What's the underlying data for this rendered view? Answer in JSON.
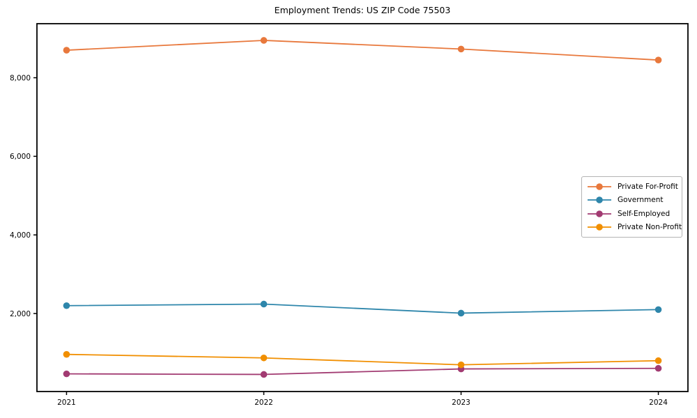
{
  "chart_data": {
    "type": "line",
    "title": "Employment Trends: US ZIP Code 75503",
    "x": [
      2021,
      2022,
      2023,
      2024
    ],
    "x_tick_labels": [
      "2021",
      "2022",
      "2023",
      "2024"
    ],
    "y_ticks": [
      2000,
      4000,
      6000,
      8000
    ],
    "y_tick_labels": [
      "2,000",
      "4,000",
      "6,000",
      "8,000"
    ],
    "xlim": [
      2020.85,
      2024.15
    ],
    "ylim": [
      15,
      9375
    ],
    "grid": false,
    "legend_position": "center right",
    "xlabel": "",
    "ylabel": "",
    "marker": "circle",
    "axis_color": "#000000",
    "background_color": "#ffffff",
    "series": [
      {
        "name": "Private For-Profit",
        "color": "#E8783C",
        "values": [
          8700,
          8950,
          8730,
          8450
        ]
      },
      {
        "name": "Government",
        "color": "#2E86AB",
        "values": [
          2200,
          2240,
          2010,
          2100
        ]
      },
      {
        "name": "Self-Employed",
        "color": "#A23B72",
        "values": [
          465,
          450,
          590,
          605
        ]
      },
      {
        "name": "Private Non-Profit",
        "color": "#F18F01",
        "values": [
          960,
          870,
          695,
          800
        ]
      }
    ]
  }
}
